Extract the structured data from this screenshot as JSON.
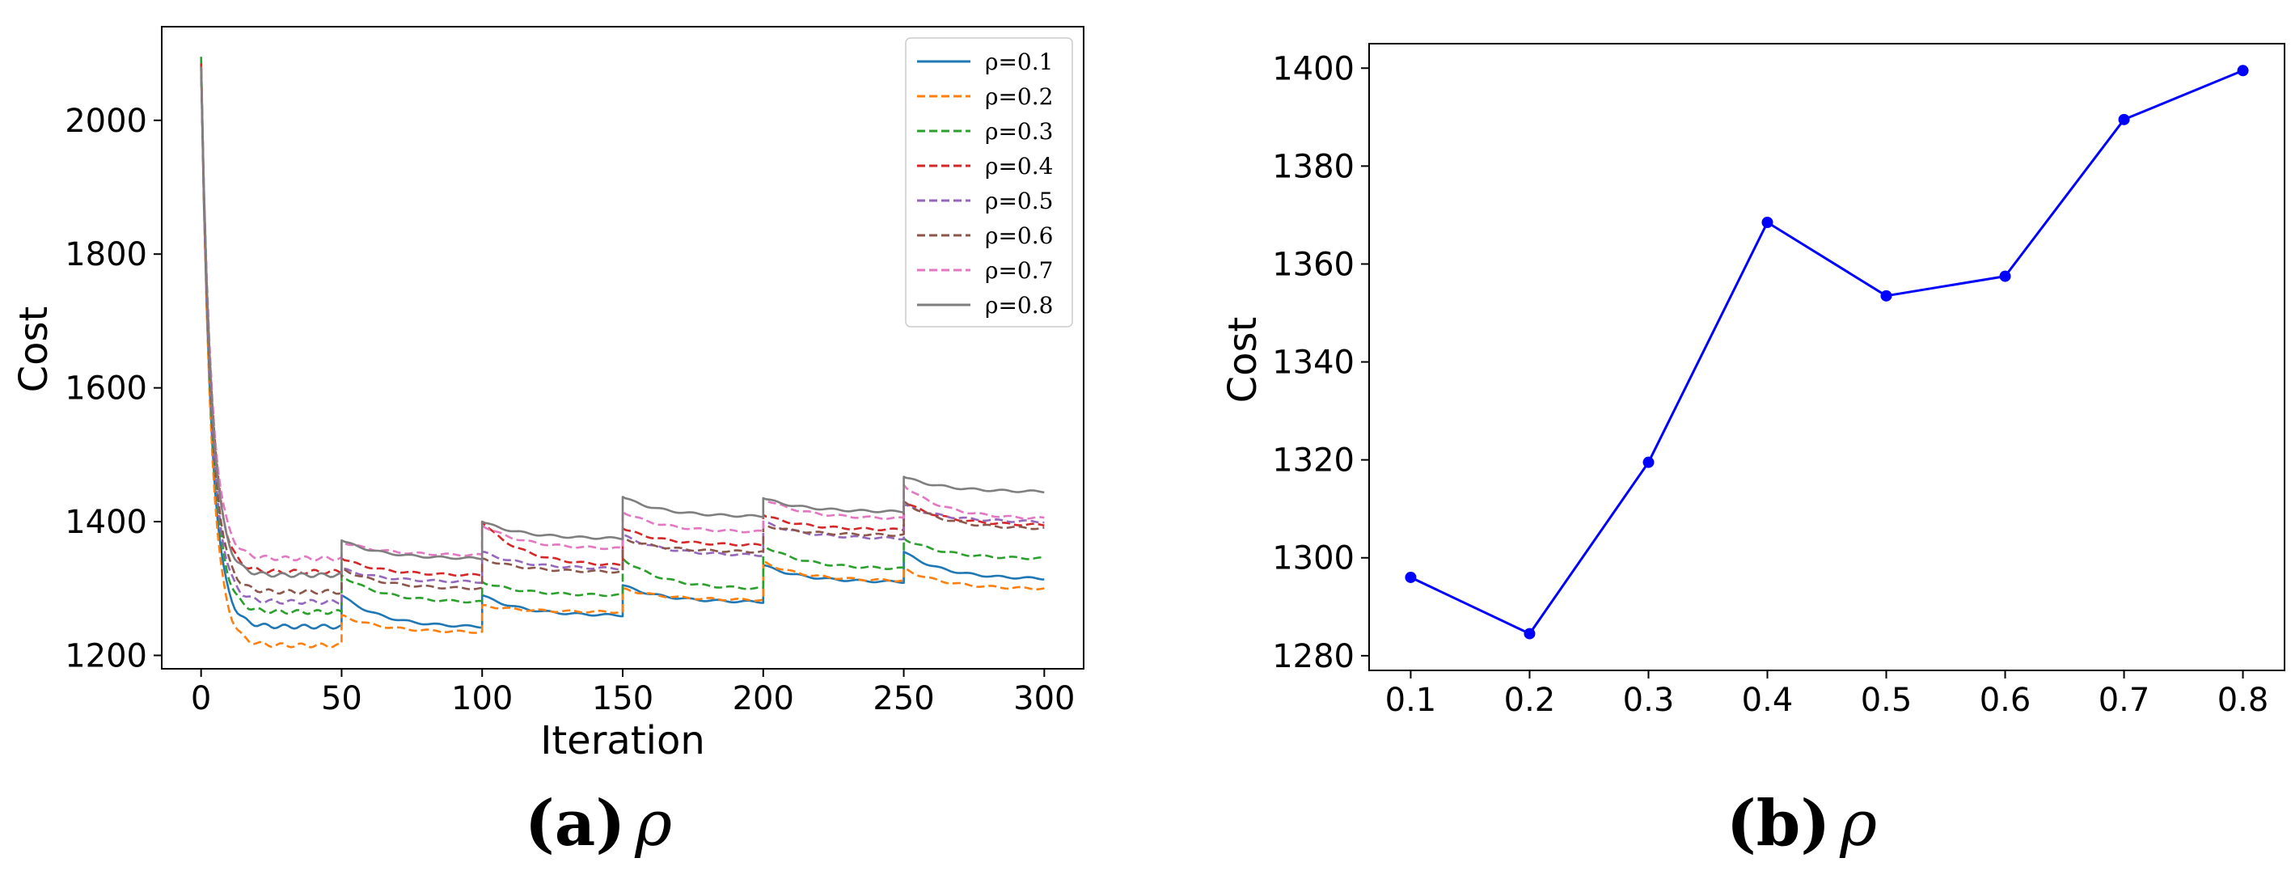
{
  "captions": {
    "a_letter": "(a)",
    "a_symbol": "ρ",
    "b_letter": "(b)",
    "b_symbol": "ρ"
  },
  "chart_data": [
    {
      "type": "line",
      "xlabel": "Iteration",
      "ylabel": "Cost",
      "xlim": [
        -14,
        314
      ],
      "ylim": [
        1180,
        2140
      ],
      "xticks": [
        0,
        50,
        100,
        150,
        200,
        250,
        300
      ],
      "yticks": [
        1200,
        1400,
        1600,
        1800,
        2000
      ],
      "grid": false,
      "legend_position": "upper-right",
      "segments": [
        0,
        50,
        100,
        150,
        200,
        250
      ],
      "segment_end": 300,
      "series": [
        {
          "name": "ρ=0.1",
          "color": "#1f77b4",
          "dash": "solid",
          "start": 2080,
          "jumps": [
            1290,
            1290,
            1305,
            1335,
            1355
          ],
          "ends": [
            1243,
            1243,
            1260,
            1280,
            1310,
            1315
          ]
        },
        {
          "name": "ρ=0.2",
          "color": "#ff7f0e",
          "dash": "dashed",
          "start": 2090,
          "jumps": [
            1260,
            1275,
            1300,
            1340,
            1330
          ],
          "ends": [
            1215,
            1235,
            1265,
            1283,
            1312,
            1300
          ]
        },
        {
          "name": "ρ=0.3",
          "color": "#2ca02c",
          "dash": "dashed",
          "start": 2095,
          "jumps": [
            1320,
            1310,
            1345,
            1365,
            1375
          ],
          "ends": [
            1265,
            1280,
            1290,
            1300,
            1330,
            1345
          ]
        },
        {
          "name": "ρ=0.4",
          "color": "#d62728",
          "dash": "dashed",
          "start": 2085,
          "jumps": [
            1345,
            1400,
            1390,
            1410,
            1430
          ],
          "ends": [
            1325,
            1320,
            1335,
            1365,
            1388,
            1395
          ]
        },
        {
          "name": "ρ=0.5",
          "color": "#9467bd",
          "dash": "dashed",
          "start": 2080,
          "jumps": [
            1330,
            1355,
            1380,
            1400,
            1425
          ],
          "ends": [
            1280,
            1310,
            1330,
            1350,
            1375,
            1400
          ]
        },
        {
          "name": "ρ=0.6",
          "color": "#8c564b",
          "dash": "dashed",
          "start": 2075,
          "jumps": [
            1330,
            1345,
            1375,
            1395,
            1430
          ],
          "ends": [
            1295,
            1300,
            1325,
            1355,
            1380,
            1390
          ]
        },
        {
          "name": "ρ=0.7",
          "color": "#e377c2",
          "dash": "dashed",
          "start": 2080,
          "jumps": [
            1370,
            1395,
            1415,
            1435,
            1455
          ],
          "ends": [
            1345,
            1350,
            1360,
            1385,
            1405,
            1405
          ]
        },
        {
          "name": "ρ=0.8",
          "color": "#7f7f7f",
          "dash": "solid",
          "start": 2080,
          "jumps": [
            1372,
            1400,
            1437,
            1435,
            1467
          ],
          "ends": [
            1320,
            1345,
            1375,
            1408,
            1415,
            1445
          ]
        }
      ]
    },
    {
      "type": "line",
      "xlabel": "",
      "ylabel": "Cost",
      "xlim": [
        0.065,
        0.835
      ],
      "ylim": [
        1277,
        1405
      ],
      "xticks": [
        0.1,
        0.2,
        0.3,
        0.4,
        0.5,
        0.6,
        0.7,
        0.8
      ],
      "yticks": [
        1280,
        1300,
        1320,
        1340,
        1360,
        1380,
        1400
      ],
      "grid": false,
      "markers": true,
      "color": "#0000ff",
      "x": [
        0.1,
        0.2,
        0.3,
        0.4,
        0.5,
        0.6,
        0.7,
        0.8
      ],
      "y": [
        1296,
        1284.5,
        1319.5,
        1368.5,
        1353.5,
        1357.5,
        1389.5,
        1399.5
      ]
    }
  ]
}
